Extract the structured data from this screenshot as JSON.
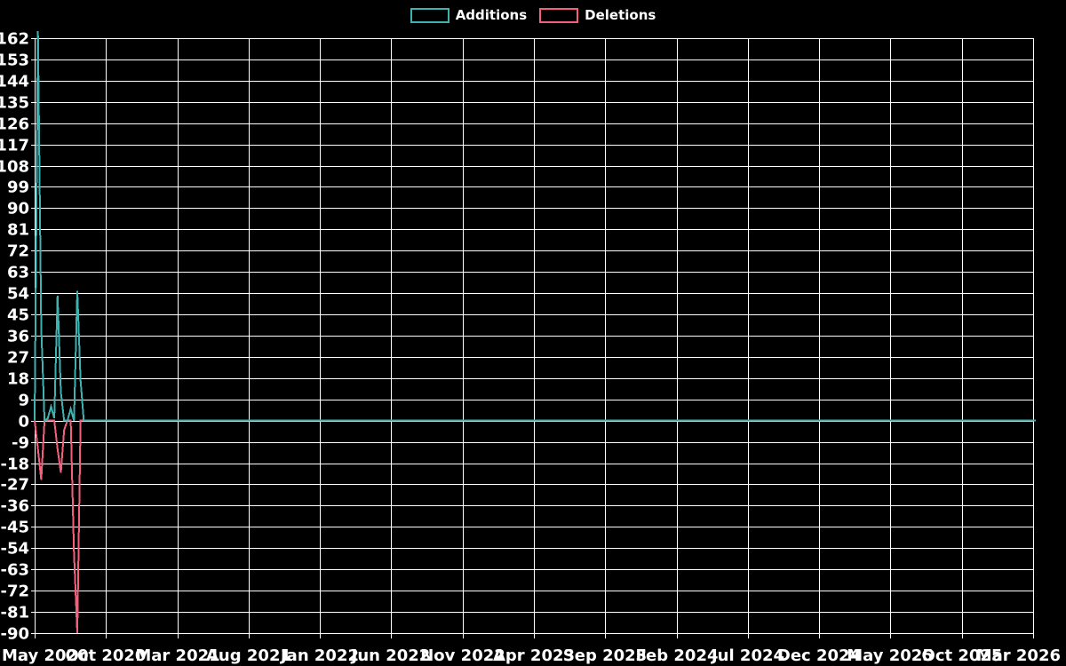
{
  "page": {
    "background_color": "#000000",
    "text_color": "#ffffff",
    "grid_color": "#ffffff"
  },
  "legend": {
    "position": "top-center",
    "items": [
      {
        "label": "Additions",
        "color": "#3EB1B1"
      },
      {
        "label": "Deletions",
        "color": "#F4607C"
      }
    ]
  },
  "chart_data": {
    "type": "line",
    "title": "",
    "xlabel": "",
    "ylabel": "",
    "grid": true,
    "legend_position": "top-center",
    "x_axis": {
      "tick_labels": [
        "May 2020",
        "Oct 2020",
        "Mar 2021",
        "Aug 2021",
        "Jan 2022",
        "Jun 2022",
        "Nov 2022",
        "Apr 2023",
        "Sep 2023",
        "Feb 2024",
        "Jul 2024",
        "Dec 2024",
        "May 2025",
        "Oct 2025",
        "Mar 2026"
      ],
      "tick_interval_months": 5,
      "data_interval": "weekly",
      "data_start_label": "May 2020"
    },
    "y_axis": {
      "tick_labels": [
        162,
        153,
        144,
        135,
        126,
        117,
        108,
        99,
        90,
        81,
        72,
        63,
        54,
        45,
        36,
        27,
        18,
        9,
        0,
        -9,
        -18,
        -27,
        -36,
        -45,
        -54,
        -63,
        -72,
        -81,
        -90
      ],
      "tick_step": 9,
      "min": -90,
      "max": 165
    },
    "series": [
      {
        "name": "Additions",
        "color": "#3EB1B1",
        "weekly_values": [
          0,
          165,
          40,
          0,
          1,
          6,
          1,
          53,
          12,
          0,
          0,
          5,
          0,
          55,
          17,
          0
        ],
        "after_active_weeks": "flat at 0 through Mar 2026"
      },
      {
        "name": "Deletions",
        "color": "#F4607C",
        "weekly_values": [
          0,
          -12,
          -25,
          0,
          0,
          0,
          0,
          -12,
          -22,
          -4,
          0,
          0,
          -56,
          -90,
          0,
          0
        ],
        "after_active_weeks": "flat at 0 through Mar 2026"
      }
    ]
  }
}
